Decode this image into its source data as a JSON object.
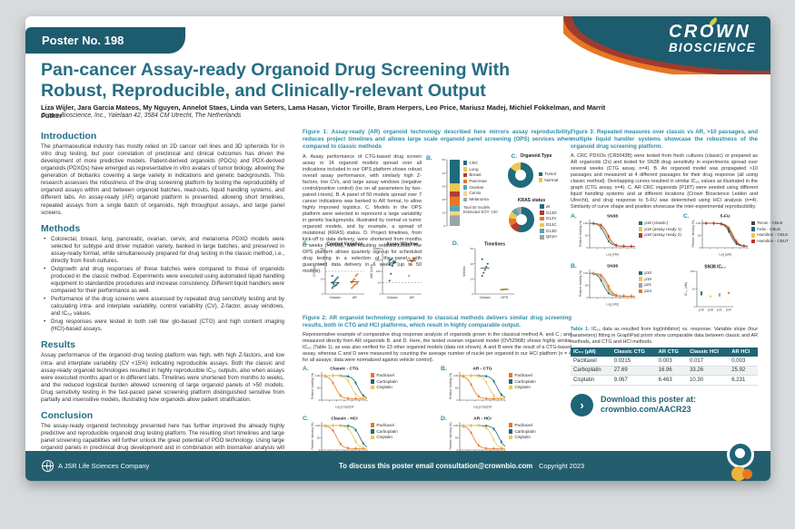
{
  "header": {
    "poster_no": "Poster No. 198",
    "brand1": "CROWN",
    "brand2": "BIOSCIENCE"
  },
  "title": "Pan-cancer Assay-ready Organoid Drug Screening With Robust, Reproducible, and Clinically-relevant Output",
  "authors": "Liza Wijler, Jara Garcia Mateos, My Nguyen, Annelot Staes, Linda van Seters, Lama Hasan, Victor Tiroille, Bram Herpers, Leo Price, Mariusz Madej, Michiel Fokkelman, and Marrit Putker",
  "affiliation": "Crown Bioscience, Inc., Yalelaan 42, 3584 CM Utrecht, The Netherlands",
  "panel_labels": {
    "a": "A.",
    "b": "B.",
    "c": "C.",
    "d": "D."
  },
  "sections": {
    "introduction": {
      "heading": "Introduction",
      "body": "The pharmaceutical industry has mostly relied on 2D cancer cell lines and 3D spheroids for in vitro drug testing, but poor correlation of preclinical and clinical outcomes has driven the development of more predictive models. Patient-derived organoids (PDOs) and PDX-derived organoids (PDXOs) have emerged as representative in vitro avatars of tumor biology, allowing the generation of biobanks covering a large variety in indications and genetic backgrounds. This research assesses the robustness of the drug screening platform by testing the reproducibility of organoid assays within and between organoid batches, read-outs, liquid handling systems, and different labs. An assay-ready (AR) organoid platform is presented, allowing short timelines, repeated assays from a single batch of organoids, high throughput assays, and large panel screens."
    },
    "methods": {
      "heading": "Methods",
      "bullets": [
        "Colorectal, breast, lung, pancreatic, ovarian, cervix, and melanoma PDXO models were selected for subtype and driver mutation variety, banked in large batches, and preserved in assay-ready format, while simultaneously prepared for drug testing in the classic method, i.e., directly from fresh cultures.",
        "Outgrowth and drug responses of these batches were compared to those of organoids produced in the classic method. Experiments were executed using automated liquid handling equipment to standardize procedures and increase consistency. Different liquid handlers were compared for their performance as well.",
        "Performance of the drug screens were assessed by repeated drug sensitivity testing and by calculating intra- and interplate variability, control variability (CV), Z-factor, assay windows, and IC₅₀ values.",
        "Drug responses were tested in both cell titer glo-based (CTG) and high content imaging (HCI)-based assays."
      ]
    },
    "results": {
      "heading": "Results",
      "body": "Assay performance of the organoid drug testing platform was high, with high Z-factors, and low intra- and interplate variability (CV <15%) indicating reproducible assays. Both the classic and assay-ready organoid technologies resulted in highly reproducible IC₅₀ outputs, also when assays were executed months apart or in different labs. Timelines were shortened from months to weeks, and the reduced logistical burden allowed screening of large organoid panels of >50 models. Drug sensitivity testing in the fast-paced panel screening platform distinguished sensitive from partially and insensitive models, illustrating how organoids allow patient stratification."
    },
    "conclusion": {
      "heading": "Conclusion",
      "body": "The assay-ready organoid technology presented here has further improved the already highly predictive and reproducible organoid drug testing platform. The resulting short timelines and large panel screening capabilities will further unlock the great potential of PDO technology. Using large organoid panels in preclinical drug development and in combination with biomarker analysis will allow identification of responsive indications, subtypes, and genotypes, and for early patient stratification. Moreover, as most models presented in our panel screen platform are also available as PDX models, it allows for easy translation into in vivo follow-up studies."
    }
  },
  "figure1": {
    "caption": "Figure 1: Assay-ready (AR) organoid technology described here mirrors assay reproducibility, reduces project timelines and allows large scale organoid panel screening (OPS) services when compared to classic methods",
    "body": "A. Assay performance of CTG-based drug screen assay in 14 organoid models spread over all indications included in our OPS platform shows robust overall assay performance, with similarly high Z-factors, low CVs, and large assay windows (negative control/positive control) (ns on all parameters by two-paired t-tests). B. A panel of 50 models spread over 7 cancer indications was banked to AR format, to allow highly improved logistics. C. Models in the OPS platform were selected to represent a large variability in genetic backgrounds, illustrated by normal vs tumor organoid models, and by example, a spread of mutational (KRAS) status. D. Project timelines, from kick-off to data delivery, were shortened from months to weeks (>6-fold), with resulting reduced costs. The OPS platform allows quarterly sign-up for scheduled drug testing in a selection of the panel, with guaranteed data delivery in 6 weeks (up to 50 models).",
    "bar": {
      "type": "stack",
      "legend": [
        {
          "label": "CRC",
          "color": "#1f6b7c",
          "v": 18
        },
        {
          "label": "Lung",
          "color": "#eec64f",
          "v": 6
        },
        {
          "label": "Breast",
          "color": "#b63a32",
          "v": 4
        },
        {
          "label": "Pancreas",
          "color": "#e87722",
          "v": 7
        },
        {
          "label": "Ovarian",
          "color": "#56a3b4",
          "v": 4
        },
        {
          "label": "Cervix",
          "color": "#f3d688",
          "v": 3
        },
        {
          "label": "Melanoma",
          "color": "#9aa5a8",
          "v": 8
        }
      ],
      "note1": "Total 50 models",
      "note2": "Estimated EOY: 100"
    },
    "donut_type": {
      "type": "donut",
      "title": "Organoid Type",
      "slices": [
        {
          "label": "Tumor",
          "color": "#1f6b7c",
          "v": 85
        },
        {
          "label": "Normal",
          "color": "#eec64f",
          "v": 15
        }
      ]
    },
    "donut_kras": {
      "type": "donut",
      "title": "KRAS status",
      "slices": [
        {
          "label": "wt",
          "color": "#1f6b7c",
          "v": 55
        },
        {
          "label": "G12D",
          "color": "#b63a32",
          "v": 12
        },
        {
          "label": "G12V",
          "color": "#e87722",
          "v": 10
        },
        {
          "label": "G12C",
          "color": "#eec64f",
          "v": 9
        },
        {
          "label": "G13D",
          "color": "#56a3b4",
          "v": 7
        },
        {
          "label": "Q61H",
          "color": "#9aa5a8",
          "v": 7
        }
      ]
    },
    "charts": {
      "cv": {
        "type": "dots",
        "title": "Control Variation",
        "ylab": "CV (%)",
        "ymax": 30,
        "yticks": [
          0,
          10,
          20,
          30
        ],
        "dash": 15,
        "groups": [
          {
            "label": "Classic",
            "color": "#1f6b7c",
            "pts": [
              4,
              5,
              5.5,
              6,
              7,
              7.5,
              8,
              9,
              10,
              11,
              12,
              6.5
            ]
          },
          {
            "label": "AR",
            "color": "#e87722",
            "pts": [
              4,
              5,
              6,
              6.5,
              7,
              8,
              9,
              10,
              12,
              13,
              7.5
            ]
          }
        ]
      },
      "aw": {
        "type": "dots",
        "title": "Assay Window",
        "ylab": "AW (fold)",
        "log": true,
        "ymax": 10000,
        "yticks": [
          1,
          10,
          100,
          1000,
          10000
        ],
        "dash": 10,
        "groups": [
          {
            "label": "Classic",
            "color": "#1f6b7c",
            "pts": [
              15,
              60,
              300,
              500,
              700,
              900,
              1100,
              1400,
              800,
              600,
              400
            ]
          },
          {
            "label": "AR",
            "color": "#e87722",
            "pts": [
              40,
              400,
              700,
              900,
              1200,
              1500,
              1000,
              800,
              1300
            ]
          }
        ]
      },
      "timelines": {
        "type": "dots",
        "title": "Timelines",
        "ylab": "Weeks",
        "ymax": 30,
        "yticks": [
          0,
          10,
          20,
          30
        ],
        "groups": [
          {
            "label": "Classic",
            "color": "#1f6b7c",
            "pts": [
              12,
              14,
              16,
              18,
              20,
              23
            ]
          },
          {
            "label": "OPS",
            "color": "#eec64f",
            "pts": [
              2.5,
              3,
              3,
              3.5
            ]
          }
        ]
      }
    }
  },
  "figure2": {
    "caption": "Figure 2: AR organoid technology compared to classical methods delivers similar drug screening results, both in CTG and HCI platforms, which result in highly comparable output.",
    "body": "Representative example of comparative drug response analysis of organoids grown in the classical method A. and C.; and measured directly from AR organoids B. and D. Here, the tested ovarian organoid model (OV5296B) shows highly similar IC₅₀ (Table 1), as was also verified for 23 other organoid models (data not shown). A and B were the result of a CTG-based assay, whereas C and D were measured by counting the average number of nuclei per organoid in our HCI platform (n = 4 for all assays; data were normalized against vehicle control).",
    "charts": {
      "classic_ctg": {
        "type": "dose",
        "title": "Classic - CTG",
        "ylab": "Relative Viability (%)",
        "xlab": "Log [cmpd] M",
        "series": [
          {
            "label": "Paclitaxel",
            "color": "#e87722",
            "x50": 0.3
          },
          {
            "label": "Carboplatin",
            "color": "#1f6b7c",
            "x50": 0.8
          },
          {
            "label": "Cisplatin",
            "color": "#eec64f",
            "x50": 0.66
          }
        ]
      },
      "ar_ctg": {
        "type": "dose",
        "title": "AR - CTG",
        "ylab": "Relative Viability (%)",
        "xlab": "Log [cmpd] M",
        "series": [
          {
            "label": "Paclitaxel",
            "color": "#e87722",
            "x50": 0.28
          },
          {
            "label": "Carboplatin",
            "color": "#1f6b7c",
            "x50": 0.82
          },
          {
            "label": "Cisplatin",
            "color": "#eec64f",
            "x50": 0.64
          }
        ]
      },
      "classic_hci": {
        "type": "dose",
        "title": "Classic - HCI",
        "ylab": "Relative Intensity (%)",
        "xlab": "Log [cmpd] M",
        "series": [
          {
            "label": "Paclitaxel",
            "color": "#e87722",
            "x50": 0.33
          },
          {
            "label": "Carboplatin",
            "color": "#1f6b7c",
            "x50": 0.84
          },
          {
            "label": "Cisplatin",
            "color": "#eec64f",
            "x50": 0.7
          }
        ]
      },
      "ar_hci": {
        "type": "dose",
        "title": "AR - HCI",
        "ylab": "Relative Intensity (%)",
        "xlab": "Log [cmpd] M",
        "series": [
          {
            "label": "Paclitaxel",
            "color": "#e87722",
            "x50": 0.3
          },
          {
            "label": "Carboplatin",
            "color": "#1f6b7c",
            "x50": 0.86
          },
          {
            "label": "Cisplatin",
            "color": "#eec64f",
            "x50": 0.72
          }
        ]
      }
    }
  },
  "figure3": {
    "caption": "Figure 3: Repeated measures over classic vs AR, >10 passages, and multiple liquid handler systems showcase the robustness of the organoid drug screening platform.",
    "body": "A. CRC PDXOs (CR5043B) were tested from fresh cultures (classic) or prepared as AR organoids (2x) and tested for SN38 drug sensitivity in experiments spread over several weeks (CTG assay, n=4). B. An organoid model was propagated >10 passages and measured at 4 different passages for their drug response (all using classic method). Overlapping curves resulted in similar IC₅₀ values as illustrated in the graph (CTG assay, n=4). C. AR CRC organoids (P18T) were seeded using different liquid handling systems and at different locations (Crown Bioscience Leiden and Utrecht), and drug response to 5-FU was determined using HCI analysis (n=4). Similarity of curve shape and position showcase the inter-experimental reproducibility.",
    "charts": {
      "sn38_ar": {
        "type": "dose",
        "title": "SN38",
        "ylab": "Relative Viability (%)",
        "xlab": "Log [nM]",
        "series": [
          {
            "label": "p18 (classic)",
            "color": "#1f6b7c",
            "x50": 0.34
          },
          {
            "label": "p18 (assay ready 1)",
            "color": "#eec64f",
            "x50": 0.37
          },
          {
            "label": "p18 (assay ready 2)",
            "color": "#b63a32",
            "x50": 0.4
          }
        ]
      },
      "fu": {
        "type": "dose",
        "title": "5-FU",
        "ylab": "Relative Intensity (%)",
        "xlab": "Log [µM]",
        "series": [
          {
            "label": "Tecan - CBLE",
            "color": "#444444",
            "x50": 0.62
          },
          {
            "label": "Felix - CBLE",
            "color": "#1f6b7c",
            "x50": 0.65
          },
          {
            "label": "Hamilton - CBLE",
            "color": "#eec64f",
            "x50": 0.68
          },
          {
            "label": "Hamilton - CBUT",
            "color": "#b63a32",
            "x50": 0.66
          }
        ]
      },
      "sn38_passage": {
        "type": "dose",
        "title": "SN38",
        "ylab": "Relative Viability (%)",
        "xlab": "Log [nM]",
        "series": [
          {
            "label": "p16",
            "color": "#1f6b7c",
            "x50": 0.3
          },
          {
            "label": "p18",
            "color": "#eec64f",
            "x50": 0.34
          },
          {
            "label": "p21",
            "color": "#9aa5a8",
            "x50": 0.37
          },
          {
            "label": "p24",
            "color": "#e87722",
            "x50": 0.4
          }
        ]
      },
      "ic50": {
        "type": "ic50",
        "title": "SN38 IC₅₀",
        "ylab": "IC₅₀ (nM)",
        "yticks": [
          1,
          10,
          100
        ],
        "xlabels": [
          "p16",
          "p18",
          "p21",
          "p24"
        ],
        "pts": [
          {
            "x": 0,
            "v": 5,
            "color": "#1f6b7c"
          },
          {
            "x": 0,
            "v": 6.5,
            "color": "#1f6b7c"
          },
          {
            "x": 1,
            "v": 3.8,
            "color": "#eec64f"
          },
          {
            "x": 2,
            "v": 4.2,
            "color": "#9aa5a8"
          },
          {
            "x": 2,
            "v": 5.2,
            "color": "#9aa5a8"
          },
          {
            "x": 3,
            "v": 6,
            "color": "#e87722"
          }
        ]
      }
    }
  },
  "table1": {
    "caption_bold": "Table 1:",
    "caption": " IC₅₀ data as resulted from log(inhibitor) vs. response. Variable slope (four parameters) fitting in GraphPad prism show comparable data between classic and AR methods, and CTG and HCI methods.",
    "headers": [
      "IC₅₀ (µM)",
      "Classic CTG",
      "AR CTG",
      "Classic HCI",
      "AR HCI"
    ],
    "rows": [
      [
        "Paclitaxel",
        "0.0215",
        "0.003",
        "0.017",
        "0.003"
      ],
      [
        "Carboplatin",
        "27.69",
        "16.96",
        "33.26",
        "25.92"
      ],
      [
        "Cisplatin",
        "9.067",
        "6.463",
        "10.30",
        "6.231"
      ]
    ]
  },
  "download": {
    "line1": "Download this poster at:",
    "line2": "crownbio.com/AACR23",
    "arrow": "›"
  },
  "footer": {
    "company": "A JSR Life Sciences Company",
    "contact": "To discuss this poster email consultation@crownbio.com",
    "copyright": "Copyright 2023"
  }
}
